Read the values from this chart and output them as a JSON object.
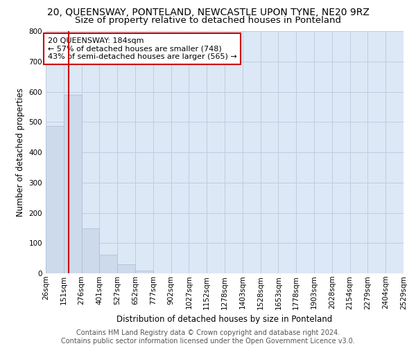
{
  "title": "20, QUEENSWAY, PONTELAND, NEWCASTLE UPON TYNE, NE20 9RZ",
  "subtitle": "Size of property relative to detached houses in Ponteland",
  "xlabel": "Distribution of detached houses by size in Ponteland",
  "ylabel": "Number of detached properties",
  "bar_values": [
    487,
    590,
    148,
    62,
    29,
    10,
    0,
    0,
    0,
    0,
    0,
    0,
    0,
    0,
    0,
    0,
    0,
    0,
    0,
    0
  ],
  "bin_edges": [
    "26sqm",
    "151sqm",
    "276sqm",
    "401sqm",
    "527sqm",
    "652sqm",
    "777sqm",
    "902sqm",
    "1027sqm",
    "1152sqm",
    "1278sqm",
    "1403sqm",
    "1528sqm",
    "1653sqm",
    "1778sqm",
    "1903sqm",
    "2028sqm",
    "2154sqm",
    "2279sqm",
    "2404sqm",
    "2529sqm"
  ],
  "bar_color": "#cddaeb",
  "bar_edge_color": "#a8bcd4",
  "vline_color": "#cc0000",
  "vline_x": 1.26,
  "annotation_text": "20 QUEENSWAY: 184sqm\n← 57% of detached houses are smaller (748)\n43% of semi-detached houses are larger (565) →",
  "annotation_box_edge": "#cc0000",
  "ylim": [
    0,
    800
  ],
  "yticks": [
    0,
    100,
    200,
    300,
    400,
    500,
    600,
    700,
    800
  ],
  "grid_color": "#c0cce0",
  "background_color": "#dce8f5",
  "footer_line1": "Contains HM Land Registry data © Crown copyright and database right 2024.",
  "footer_line2": "Contains public sector information licensed under the Open Government Licence v3.0.",
  "title_fontsize": 10,
  "subtitle_fontsize": 9.5,
  "axis_label_fontsize": 8.5,
  "tick_fontsize": 7.5,
  "annotation_fontsize": 8,
  "footer_fontsize": 7
}
